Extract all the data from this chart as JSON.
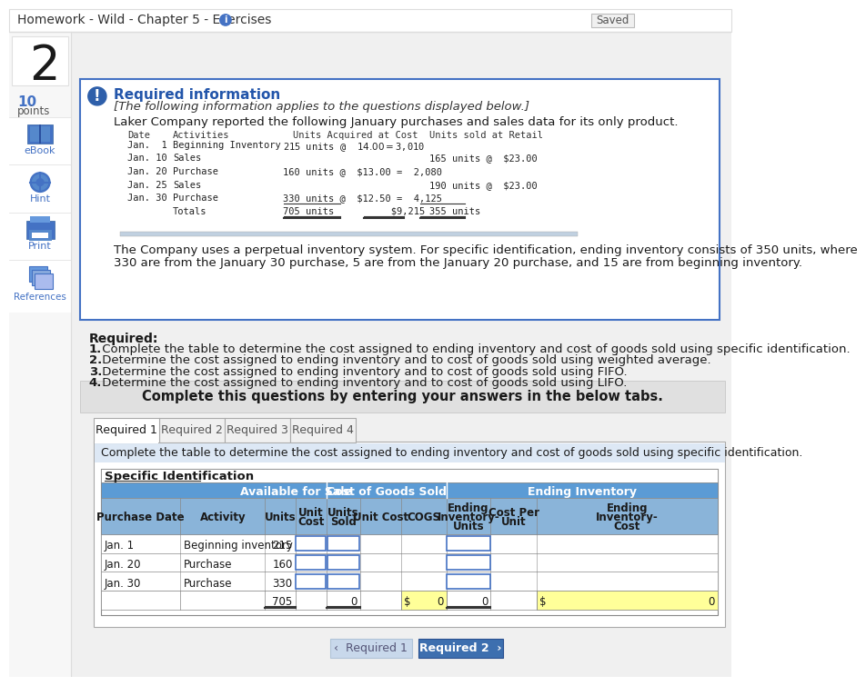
{
  "title_bar": "Homework - Wild - Chapter 5 - Exercises",
  "saved_btn": "Saved",
  "question_num": "2",
  "bg_color": "#ffffff",
  "required_info_title": "Required information",
  "italic_text": "[The following information applies to the questions displayed below.]",
  "company_text": "Laker Company reported the following January purchases and sales data for its only product.",
  "inventory_note_1": "The Company uses a perpetual inventory system. For specific identification, ending inventory consists of 350 units, where",
  "inventory_note_2": "330 are from the January 30 purchase, 5 are from the January 20 purchase, and 15 are from beginning inventory.",
  "required_label": "Required:",
  "required_items": [
    [
      "1.",
      " Complete the table to determine the cost assigned to ending inventory and cost of goods sold using specific identification."
    ],
    [
      "2.",
      " Determine the cost assigned to ending inventory and to cost of goods sold using weighted average."
    ],
    [
      "3.",
      " Determine the cost assigned to ending inventory and to cost of goods sold using FIFO."
    ],
    [
      "4.",
      " Determine the cost assigned to ending inventory and to cost of goods sold using LIFO."
    ]
  ],
  "complete_text": "Complete this questions by entering your answers in the below tabs.",
  "tabs": [
    "Required 1",
    "Required 2",
    "Required 3",
    "Required 4"
  ],
  "tab_desc": "Complete the table to determine the cost assigned to ending inventory and cost of goods sold using specific identification.",
  "table_title": "Specific Identification",
  "col_group1": "Available for Sale",
  "col_group2": "Cost of Goods Sold",
  "col_group3": "Ending Inventory",
  "rows": [
    {
      "date": "Jan. 1",
      "activity": "Beginning inventory",
      "units": "215"
    },
    {
      "date": "Jan. 20",
      "activity": "Purchase",
      "units": "160"
    },
    {
      "date": "Jan. 30",
      "activity": "Purchase",
      "units": "330"
    }
  ],
  "total_units": "705",
  "total_units_sold": "0",
  "total_cogs": "$",
  "total_cogs_val": "0",
  "total_ei_units": "0",
  "total_ei_cost": "$",
  "total_ei_cost_val": "0",
  "nav_btn_left": "‹  Required 1",
  "nav_btn_right": "Required 2  ›",
  "mono_rows": [
    {
      "date": "Jan.  1",
      "act": "Beginning Inventory",
      "acq": "215 units @  $14.00 = $3,010",
      "sold": ""
    },
    {
      "date": "Jan. 10",
      "act": "Sales",
      "acq": "",
      "sold": "165 units @  $23.00"
    },
    {
      "date": "Jan. 20",
      "act": "Purchase",
      "acq": "160 units @  $13.00 =  2,080",
      "sold": ""
    },
    {
      "date": "Jan. 25",
      "act": "Sales",
      "acq": "",
      "sold": "190 units @  $23.00"
    },
    {
      "date": "Jan. 30",
      "act": "Purchase",
      "acq": "330 units @  $12.50 =  4,125",
      "sold": ""
    },
    {
      "date": "",
      "act": "Totals",
      "acq": "705 units          $9,215",
      "sold": "355 units"
    }
  ],
  "header_bg": "#5b9bd5",
  "subheader_bg": "#8ab4d9",
  "yellow_bg": "#ffff99",
  "blue_border": "#4472c4",
  "tab_blue": "#3d6faf",
  "light_blue_tab": "#dce9f5"
}
